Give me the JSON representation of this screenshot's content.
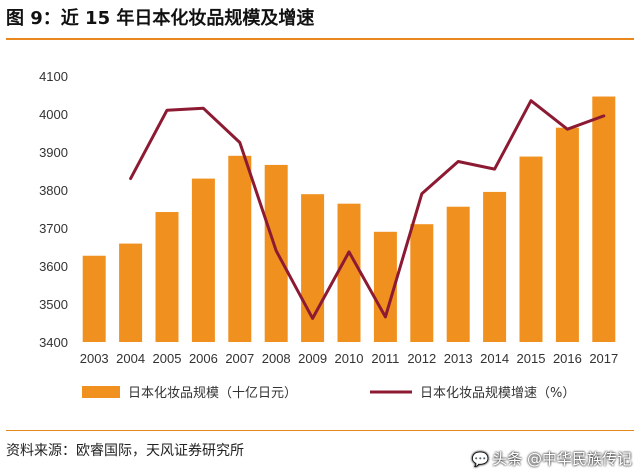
{
  "title": "图 9：近 15 年日本化妆品规模及增速",
  "source": "资料来源：欧睿国际，天风证券研究所",
  "watermark": "头条 @中华民族传记",
  "colors": {
    "bar": "#F0901E",
    "line": "#8C1A32",
    "accent": "#E8871E"
  },
  "chart_data": {
    "type": "bar",
    "categories": [
      "2003",
      "2004",
      "2005",
      "2006",
      "2007",
      "2008",
      "2009",
      "2010",
      "2011",
      "2012",
      "2013",
      "2014",
      "2015",
      "2016",
      "2017"
    ],
    "ylim": [
      3400,
      4100
    ],
    "yticks": [
      3400,
      3500,
      3600,
      3700,
      3800,
      3900,
      4000,
      4100
    ],
    "grid": false,
    "legend_position": "bottom",
    "series": [
      {
        "name": "日本化妆品规模（十亿日元）",
        "type": "bar",
        "values": [
          3627,
          3659,
          3742,
          3830,
          3890,
          3866,
          3789,
          3764,
          3690,
          3710,
          3756,
          3795,
          3888,
          3964,
          4046
        ]
      },
      {
        "name": "日本化妆品规模增速（%）",
        "type": "line",
        "values": [
          null,
          3830,
          4010,
          4015,
          3925,
          3640,
          3462,
          3637,
          3466,
          3790,
          3875,
          3855,
          4035,
          3960,
          3995
        ]
      }
    ]
  }
}
